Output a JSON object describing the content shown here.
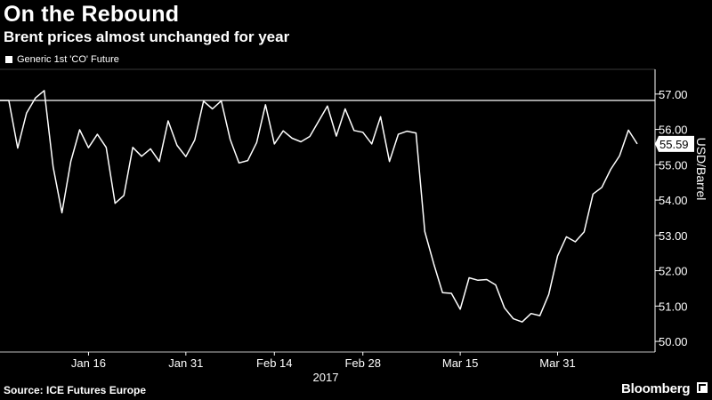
{
  "header": {
    "title": "On the Rebound",
    "subtitle": "Brent prices almost unchanged for year"
  },
  "footer": {
    "source": "Source: ICE Futures Europe",
    "brand": "Bloomberg"
  },
  "colors": {
    "background": "#000000",
    "line": "#ffffff",
    "grid": "#ffffff",
    "label_fill": "#ffffff",
    "label_text": "#000000"
  },
  "chart_data": {
    "type": "line",
    "title": "On the Rebound",
    "subtitle": "Brent prices almost unchanged for year",
    "ylabel": "USD/Barrel",
    "xlabel": "2017",
    "x_ticks": [
      "Jan 16",
      "Jan 31",
      "Feb 14",
      "Feb 28",
      "Mar 15",
      "Mar 31"
    ],
    "y_ticks": [
      50,
      51,
      52,
      53,
      54,
      55,
      56,
      57
    ],
    "y_tick_labels": [
      "50.00",
      "51.00",
      "52.00",
      "53.00",
      "54.00",
      "55.00",
      "56.00",
      "57.00"
    ],
    "ylim": [
      49.7,
      57.7
    ],
    "reference_line": 56.82,
    "last_value": 55.59,
    "last_value_label": "55.59",
    "grid": false,
    "legend": {
      "position": "top-left",
      "entries": [
        "Generic 1st 'CO' Future"
      ]
    },
    "series": [
      {
        "name": "Generic 1st 'CO' Future",
        "values": [
          56.82,
          56.82,
          55.47,
          56.46,
          56.89,
          57.1,
          54.94,
          53.64,
          55.1,
          55.99,
          55.48,
          55.86,
          55.49,
          53.91,
          54.13,
          55.49,
          55.24,
          55.45,
          55.09,
          56.24,
          55.55,
          55.23,
          55.7,
          56.8,
          56.58,
          56.81,
          55.72,
          55.05,
          55.12,
          55.63,
          56.7,
          55.59,
          55.96,
          55.75,
          55.65,
          55.8,
          56.23,
          56.66,
          55.81,
          56.58,
          55.97,
          55.92,
          55.59,
          56.36,
          55.09,
          55.86,
          55.95,
          55.9,
          53.11,
          52.2,
          51.38,
          51.36,
          50.91,
          51.8,
          51.73,
          51.75,
          51.6,
          50.95,
          50.64,
          50.55,
          50.79,
          50.73,
          51.33,
          52.42,
          52.96,
          52.82,
          53.1,
          54.17,
          54.36,
          54.87,
          55.25,
          55.98,
          55.59
        ]
      }
    ]
  }
}
